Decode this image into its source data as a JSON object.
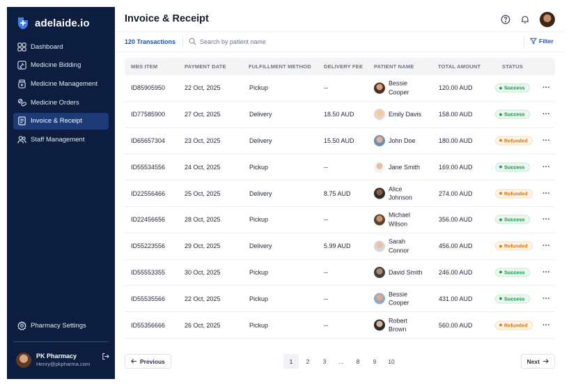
{
  "brand": {
    "name": "adelaide.io"
  },
  "sidebar": {
    "items": [
      {
        "label": "Dashboard",
        "icon": "dashboard-icon",
        "active": false
      },
      {
        "label": "Medicine Bidding",
        "icon": "gavel-icon",
        "active": false
      },
      {
        "label": "Medicine Management",
        "icon": "pill-bottle-icon",
        "active": false
      },
      {
        "label": "Medicine Orders",
        "icon": "pills-icon",
        "active": false
      },
      {
        "label": "Invoice & Receipt",
        "icon": "receipt-icon",
        "active": true
      },
      {
        "label": "Staff Management",
        "icon": "users-icon",
        "active": false
      }
    ],
    "settings_label": "Pharmacy Settings",
    "profile": {
      "name": "PK Pharmacy",
      "email": "Henry@pkpharma.com"
    }
  },
  "header": {
    "title": "Invoice & Receipt"
  },
  "subbar": {
    "count_label": "120 Transactions",
    "search_placeholder": "Search by patient name",
    "filter_label": "Filter"
  },
  "table": {
    "columns": [
      "MBS ITEM",
      "PAYMENT DATE",
      "FULFILLMENT METHOD",
      "DELIVERY FEE",
      "PATIENT NAME",
      "TOTAL AMOUNT",
      "STATUS"
    ],
    "rows": [
      {
        "id": "ID85905950",
        "date": "22 Oct, 2025",
        "method": "Pickup",
        "fee": "--",
        "patient": "Bessie Cooper",
        "amount": "120.00 AUD",
        "status": "Success"
      },
      {
        "id": "ID77585900",
        "date": "27 Oct, 2025",
        "method": "Delivery",
        "fee": "18.50 AUD",
        "patient": "Emily Davis",
        "amount": "158.00 AUD",
        "status": "Success"
      },
      {
        "id": "ID65657304",
        "date": "23 Oct, 2025",
        "method": "Delivery",
        "fee": "15.50 AUD",
        "patient": "John Doe",
        "amount": "180.00 AUD",
        "status": "Refunded"
      },
      {
        "id": "ID55534556",
        "date": "24 Oct, 2025",
        "method": "Pickup",
        "fee": "--",
        "patient": "Jane Smith",
        "amount": "169.00 AUD",
        "status": "Success"
      },
      {
        "id": "ID22556466",
        "date": "25 Oct, 2025",
        "method": "Delivery",
        "fee": "8.75 AUD",
        "patient": "Alice Johnson",
        "amount": "274.00 AUD",
        "status": "Refunded"
      },
      {
        "id": "ID22456656",
        "date": "28 Oct, 2025",
        "method": "Pickup",
        "fee": "--",
        "patient": "Michael Wilson",
        "amount": "356.00 AUD",
        "status": "Success"
      },
      {
        "id": "ID55223556",
        "date": "29 Oct, 2025",
        "method": "Delivery",
        "fee": "5.99 AUD",
        "patient": "Sarah Connor",
        "amount": "456.00 AUD",
        "status": "Refunded"
      },
      {
        "id": "ID55553355",
        "date": "30 Oct, 2025",
        "method": "Pickup",
        "fee": "--",
        "patient": "David Smith",
        "amount": "246.00 AUD",
        "status": "Success"
      },
      {
        "id": "ID55535566",
        "date": "22 Oct, 2025",
        "method": "Pickup",
        "fee": "--",
        "patient": "Bessie Cooper",
        "amount": "431.00 AUD",
        "status": "Success"
      },
      {
        "id": "ID55356666",
        "date": "26 Oct, 2025",
        "method": "Pickup",
        "fee": "--",
        "patient": "Robert Brown",
        "amount": "560.00 AUD",
        "status": "Refunded"
      }
    ],
    "more_label": "···"
  },
  "pagination": {
    "previous_label": "Previous",
    "next_label": "Next",
    "pages": [
      "1",
      "2",
      "3",
      "...",
      "8",
      "9",
      "10"
    ],
    "current": "1"
  },
  "colors": {
    "sidebar_bg": "#0c1d3f",
    "active_nav": "#1d3b76",
    "accent": "#1f4fa8",
    "success": "#22a052",
    "refunded": "#e07b0f"
  }
}
